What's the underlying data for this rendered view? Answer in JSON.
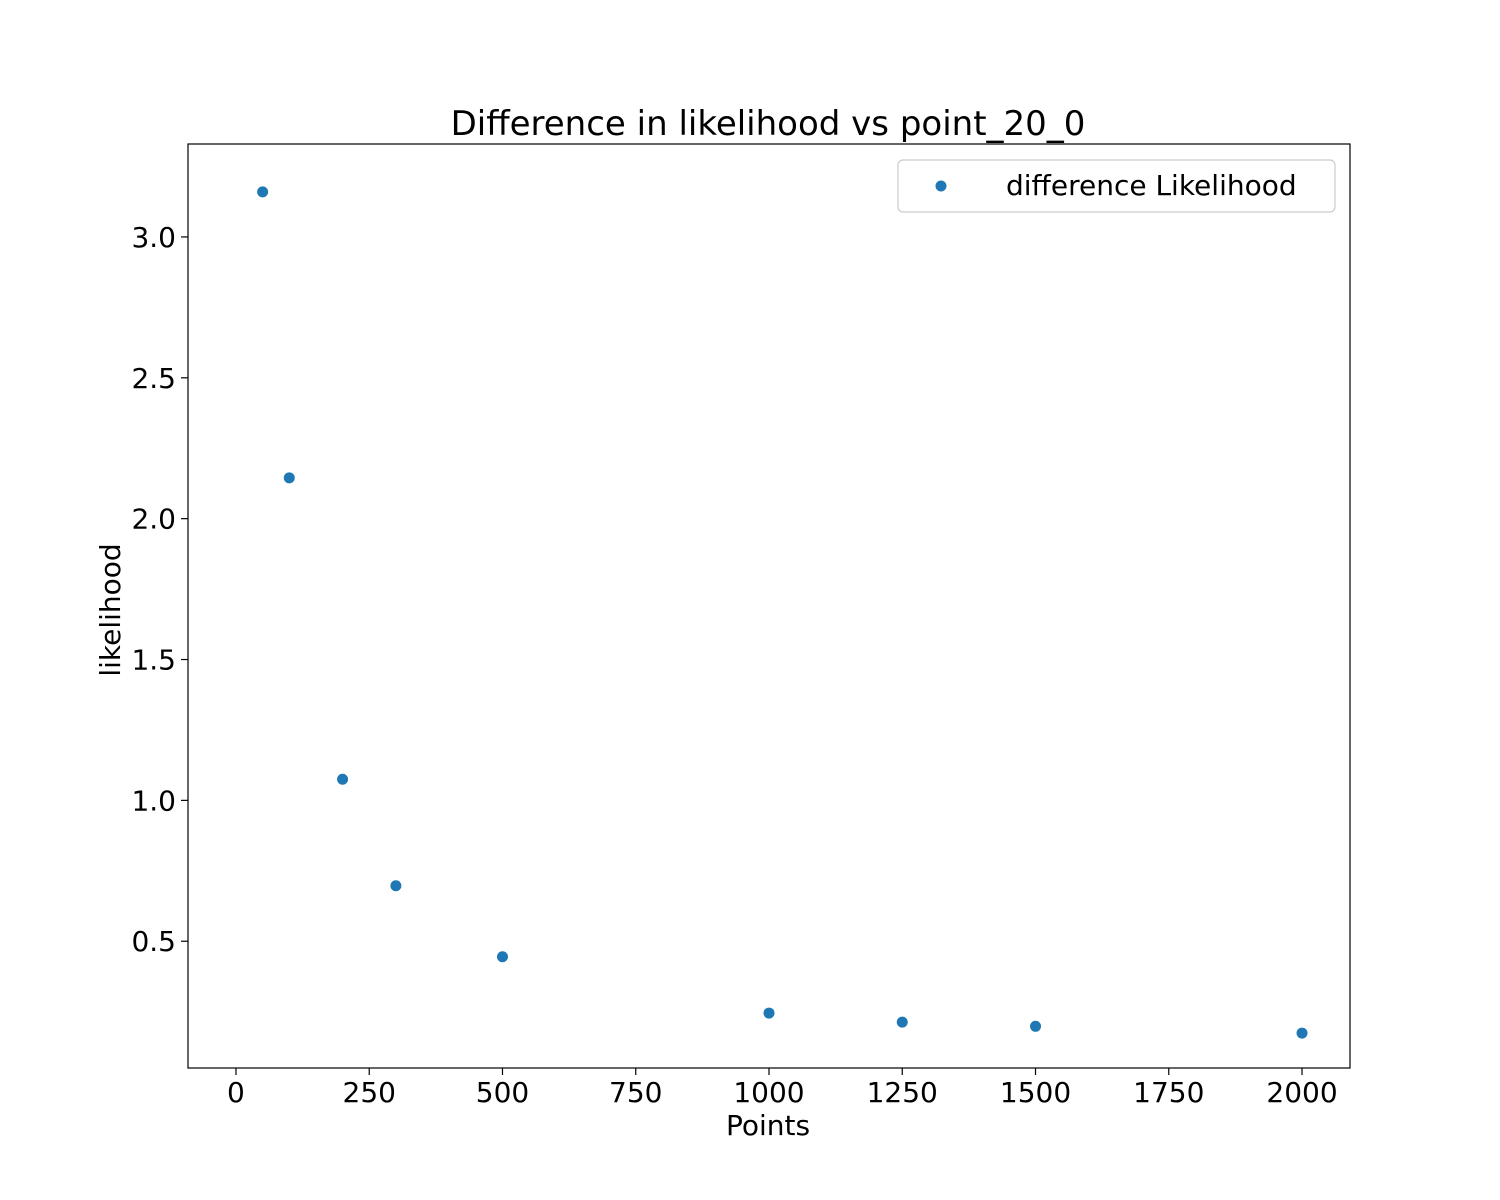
{
  "chart_data": {
    "type": "scatter",
    "title": "Difference in likelihood vs point_20_0",
    "xlabel": "Points",
    "ylabel": "likelihood",
    "xlim": [
      -90,
      2090
    ],
    "ylim": [
      0.05,
      3.33
    ],
    "x_ticks": [
      0,
      250,
      500,
      750,
      1000,
      1250,
      1500,
      1750,
      2000
    ],
    "x_tick_labels": [
      "0",
      "250",
      "500",
      "750",
      "1000",
      "1250",
      "1500",
      "1750",
      "2000"
    ],
    "y_ticks": [
      0.5,
      1.0,
      1.5,
      2.0,
      2.5,
      3.0
    ],
    "y_tick_labels": [
      "0.5",
      "1.0",
      "1.5",
      "2.0",
      "2.5",
      "3.0"
    ],
    "grid": false,
    "legend_position": "top-right",
    "series": [
      {
        "name": "difference Likelihood",
        "color": "#1f77b4",
        "x": [
          50,
          100,
          200,
          300,
          500,
          1000,
          1250,
          1500,
          2000
        ],
        "y": [
          3.16,
          2.145,
          1.075,
          0.697,
          0.445,
          0.245,
          0.213,
          0.198,
          0.174
        ]
      }
    ]
  }
}
